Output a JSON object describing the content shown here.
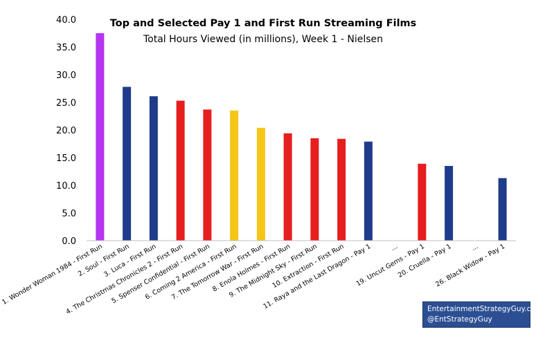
{
  "chart_data": {
    "type": "bar",
    "title": "Top and Selected Pay 1 and First Run Streaming Films",
    "subtitle": "Total Hours Viewed (in millions), Week 1 - Nielsen",
    "ylim": [
      0,
      40
    ],
    "yticks": [
      "0.0",
      "5.0",
      "10.0",
      "15.0",
      "20.0",
      "25.0",
      "30.0",
      "35.0",
      "40.0"
    ],
    "grid": false,
    "categories": [
      "1. Wonder Woman 1984 - First Run",
      "2. Soul - First Run",
      "3. Luca - First Run",
      "4. The Christmas Chronicles 2 - First Run",
      "5. Spenser Confidential - First Run",
      "6. Coming 2 America - First Run",
      "7. The Tomorrow War - First Run",
      "8. Enola Holmes - First Run",
      "9. The Midnight Sky - First Run",
      "10. Extraction - First Run",
      "11. Raya and the Last Dragon - Pay 1",
      "...",
      "19. Uncut Gems - Pay 1",
      "20. Cruella - Pay 1",
      "...",
      "26. Black Widow - Pay 1"
    ],
    "values": [
      37.5,
      27.8,
      26.1,
      25.3,
      23.7,
      23.5,
      20.4,
      19.4,
      18.5,
      18.4,
      17.9,
      null,
      13.9,
      13.5,
      null,
      11.3
    ],
    "bar_colors": [
      "#b535f0",
      "#1f3b8c",
      "#1f3b8c",
      "#e61e1e",
      "#e61e1e",
      "#f5c518",
      "#f5c518",
      "#e61e1e",
      "#e61e1e",
      "#e61e1e",
      "#1f3b8c",
      null,
      "#e61e1e",
      "#1f3b8c",
      null,
      "#1f3b8c"
    ]
  },
  "credit": {
    "line1": "EntertainmentStrategyGuy.com",
    "line2": "@EntStrategyGuy"
  }
}
